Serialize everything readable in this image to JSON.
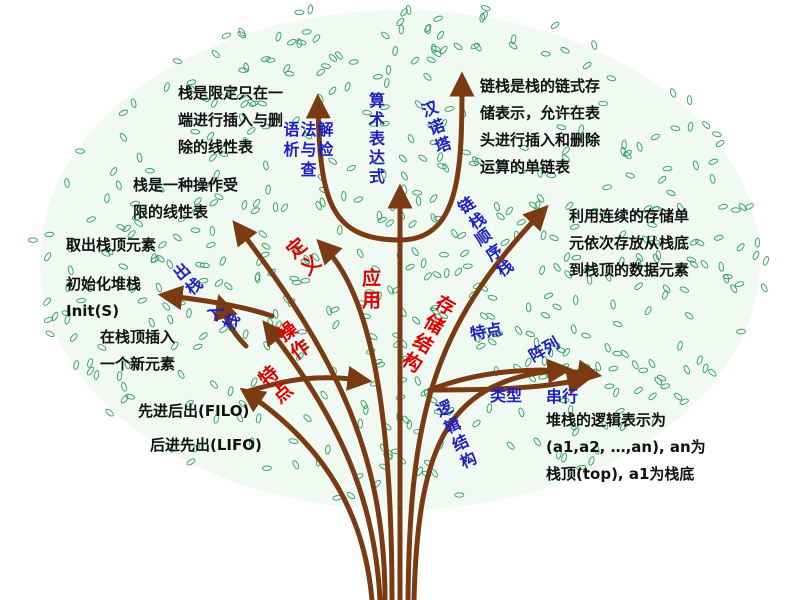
{
  "colors": {
    "trunk": "#7a3a12",
    "leaf": "#2e9f5e",
    "foliage_bg": "#f0faf3",
    "blue_text": "#2020c0",
    "red_text": "#e00000",
    "black_text": "#111111"
  },
  "red_labels": {
    "definition": "定义",
    "application": "应用",
    "storage": "存储结构",
    "operation": "操作",
    "feature": "特点"
  },
  "blue_labels": {
    "grammar": "语法解析与检查",
    "arith": "算术表达式",
    "hanoi": "汉诺塔",
    "linked": "链栈",
    "sequential": "顺序栈",
    "chars": "特点",
    "array": "阵列",
    "type": "类型",
    "serial": "串行",
    "logical": "逻辑结构",
    "pop": "出栈",
    "push": "入栈"
  },
  "texts": {
    "def1": [
      "栈是限定只在一",
      "端进行插入与删",
      "除的线性表"
    ],
    "def2": [
      "栈是一种操作受",
      "限的线性表"
    ],
    "linked_desc": [
      "链栈是栈的链式存",
      "储表示，允许在表",
      "头进行插入和删除",
      "运算的单链表"
    ],
    "seq_desc": [
      "利用连续的存储单",
      "元依次存放从栈底",
      "到栈顶的数据元素"
    ],
    "pop_desc": [
      "取出栈顶元素"
    ],
    "init_desc": [
      "初始化堆栈",
      "Init(S)"
    ],
    "push_desc": [
      "在栈顶插入",
      "一个新元素"
    ],
    "filo": [
      "先进后出(FILO)"
    ],
    "lifo": [
      "后进先出(LIFO)"
    ],
    "logic_desc": [
      "堆栈的逻辑表示为",
      "(a1,a2, …,an), an为",
      "栈顶(top), a1为栈底"
    ]
  }
}
